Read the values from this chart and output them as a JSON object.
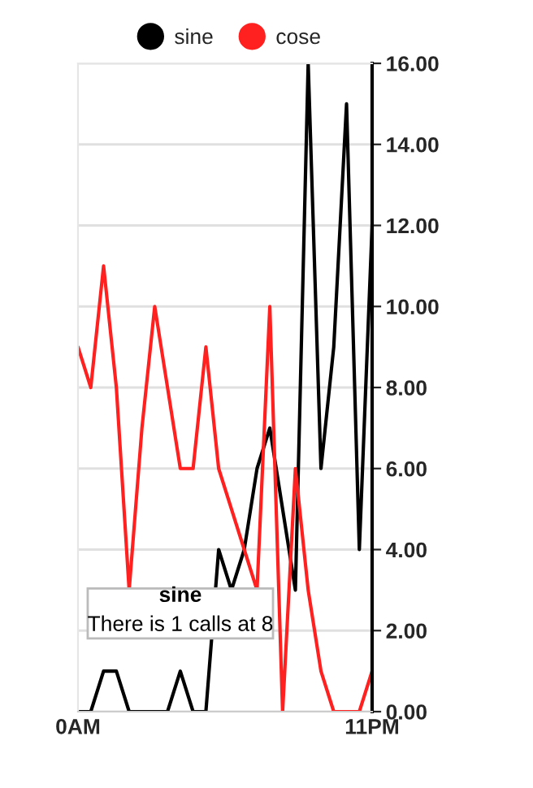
{
  "chart_data": {
    "type": "line",
    "categories": [
      "0AM",
      null,
      null,
      null,
      null,
      null,
      null,
      null,
      null,
      null,
      null,
      null,
      null,
      null,
      null,
      null,
      null,
      null,
      null,
      null,
      null,
      null,
      null,
      "11PM"
    ],
    "series": [
      {
        "name": "sine",
        "color": "#000000",
        "values": [
          0,
          0,
          1,
          1,
          0,
          0,
          0,
          0,
          1,
          0,
          0,
          4,
          3,
          4,
          6,
          7,
          5,
          3,
          16,
          6,
          9,
          15,
          4,
          12
        ]
      },
      {
        "name": "cose",
        "color": "#ff2020",
        "values": [
          9,
          8,
          11,
          8,
          3,
          7,
          10,
          8,
          6,
          6,
          9,
          6,
          5,
          4,
          3,
          10,
          0,
          6,
          3,
          1,
          0,
          0,
          0,
          1
        ]
      }
    ],
    "ylim": [
      0,
      16
    ],
    "yticks": [
      {
        "value": 0,
        "label": "0.00"
      },
      {
        "value": 2,
        "label": "2.00"
      },
      {
        "value": 4,
        "label": "4.00"
      },
      {
        "value": 6,
        "label": "6.00"
      },
      {
        "value": 8,
        "label": "8.00"
      },
      {
        "value": 10,
        "label": "10.00"
      },
      {
        "value": 12,
        "label": "12.00"
      },
      {
        "value": 14,
        "label": "14.00"
      },
      {
        "value": 16,
        "label": "16.00"
      }
    ],
    "grid": "y",
    "legend": "top",
    "marker": "none",
    "line_style": "solid",
    "annotations": [
      "sine",
      "There is 1 calls at 8"
    ]
  }
}
